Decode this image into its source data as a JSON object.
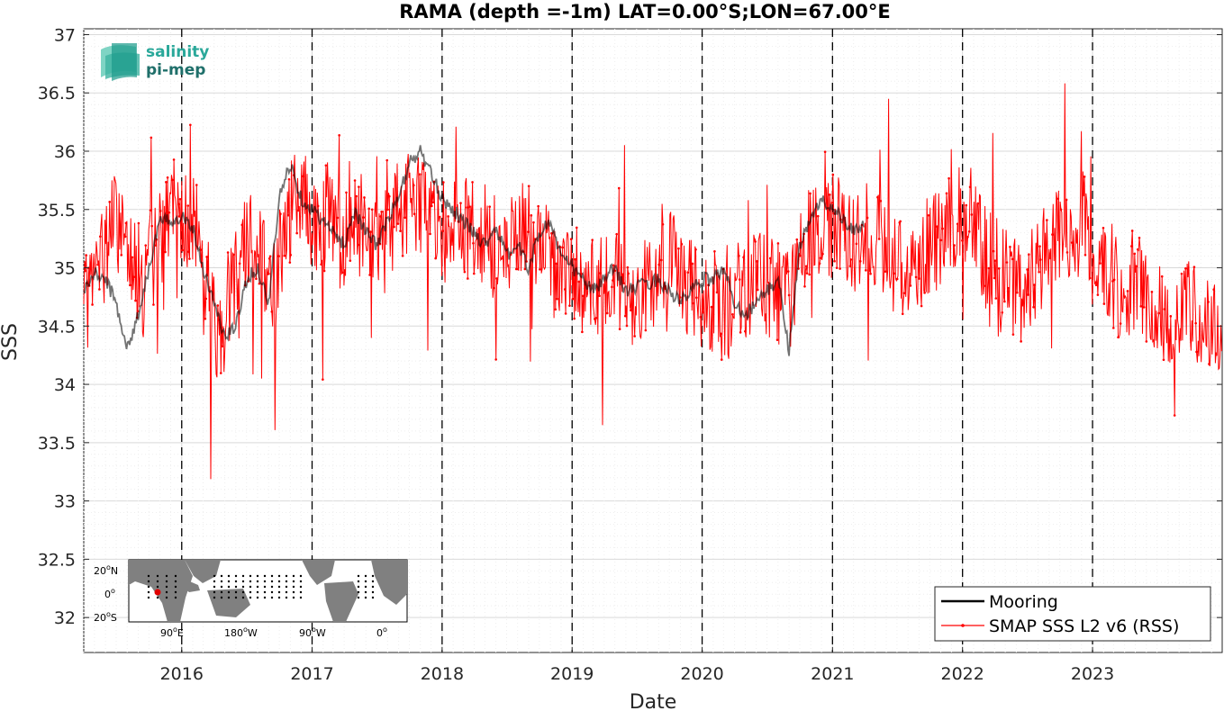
{
  "chart_data": {
    "type": "line",
    "title": "RAMA (depth =-1m) LAT=0.00°S;LON=67.00°E",
    "xlabel": "Date",
    "ylabel": "SSS",
    "xlim": [
      "2015-04-01",
      "2023-12-31"
    ],
    "ylim": [
      31.7,
      37.05
    ],
    "x_ticks": [
      "2016",
      "2017",
      "2018",
      "2019",
      "2020",
      "2021",
      "2022",
      "2023"
    ],
    "y_ticks": [
      "32",
      "32.5",
      "33",
      "33.5",
      "34",
      "34.5",
      "35",
      "35.5",
      "36",
      "36.5",
      "37"
    ],
    "year_marker_lines": [
      "2016-01-01",
      "2017-01-01",
      "2018-01-01",
      "2019-01-01",
      "2020-01-01",
      "2021-01-01",
      "2022-01-01",
      "2023-01-01"
    ],
    "grid": true,
    "legend_position": "bottom-right",
    "series": [
      {
        "name": "Mooring",
        "color": "#000000",
        "x": [
          "2015-04-01",
          "2015-05-01",
          "2015-06-01",
          "2015-07-01",
          "2015-08-01",
          "2015-09-01",
          "2015-10-01",
          "2015-11-01",
          "2015-12-01",
          "2016-01-01",
          "2016-02-01",
          "2016-03-01",
          "2016-04-01",
          "2016-05-01",
          "2016-06-01",
          "2016-07-01",
          "2016-08-01",
          "2016-09-01",
          "2016-10-01",
          "2016-11-01",
          "2016-12-01",
          "2017-01-01",
          "2017-02-01",
          "2017-03-01",
          "2017-04-01",
          "2017-05-01",
          "2017-06-01",
          "2017-07-01",
          "2017-08-01",
          "2017-09-01",
          "2017-10-01",
          "2017-11-01",
          "2017-12-01",
          "2018-01-01",
          "2018-02-01",
          "2018-03-01",
          "2018-04-01",
          "2018-05-01",
          "2018-06-01",
          "2018-07-01",
          "2018-08-01",
          "2018-09-01",
          "2018-10-01",
          "2018-11-01",
          "2018-12-01",
          "2019-01-01",
          "2019-02-01",
          "2019-03-01",
          "2019-04-01",
          "2019-05-01",
          "2019-06-01",
          "2019-09-01",
          "2019-10-01",
          "2019-11-01",
          "2019-12-01",
          "2020-01-01",
          "2020-02-01",
          "2020-03-01",
          "2020-04-01",
          "2020-05-01",
          "2020-06-01",
          "2020-07-01",
          "2020-08-01",
          "2020-09-01",
          "2020-10-01",
          "2020-11-01",
          "2020-12-01",
          "2021-01-01",
          "2021-02-01",
          "2021-03-01",
          "2021-04-01"
        ],
        "y": [
          34.8,
          34.95,
          34.9,
          34.7,
          34.3,
          34.6,
          35.0,
          35.4,
          35.4,
          35.45,
          35.35,
          35.0,
          34.7,
          34.4,
          34.5,
          34.9,
          35.0,
          34.7,
          35.6,
          35.9,
          35.6,
          35.5,
          35.4,
          35.3,
          35.2,
          35.5,
          35.3,
          35.2,
          35.4,
          35.6,
          35.9,
          36.0,
          35.8,
          35.6,
          35.5,
          35.4,
          35.3,
          35.2,
          35.35,
          35.1,
          35.2,
          35.0,
          35.3,
          35.4,
          35.1,
          35.0,
          34.9,
          34.8,
          34.9,
          35.0,
          34.8,
          34.9,
          34.8,
          34.7,
          34.8,
          34.9,
          34.9,
          35.0,
          34.7,
          34.6,
          34.7,
          34.8,
          34.9,
          34.3,
          35.2,
          35.4,
          35.6,
          35.5,
          35.4,
          35.3,
          35.4
        ]
      },
      {
        "name": "SMAP SSS L2 v6 (RSS)",
        "color": "#ff0000",
        "x": [
          "2015-04-01",
          "2015-05-15",
          "2015-06-20",
          "2015-08-01",
          "2015-09-15",
          "2015-10-25",
          "2015-12-01",
          "2016-01-15",
          "2016-02-20",
          "2016-03-25",
          "2016-04-20",
          "2016-05-25",
          "2016-07-01",
          "2016-08-05",
          "2016-09-01",
          "2016-09-20",
          "2016-10-25",
          "2016-12-01",
          "2017-01-15",
          "2017-02-20",
          "2017-03-25",
          "2017-05-01",
          "2017-06-10",
          "2017-07-20",
          "2017-09-01",
          "2017-10-15",
          "2017-11-20",
          "2018-01-01",
          "2018-02-15",
          "2018-04-01",
          "2018-05-15",
          "2018-07-01",
          "2018-08-15",
          "2018-10-01",
          "2018-11-15",
          "2019-01-01",
          "2019-02-15",
          "2019-04-01",
          "2019-05-15",
          "2019-06-20",
          "2019-09-01",
          "2019-10-15",
          "2019-12-01",
          "2020-01-15",
          "2020-03-01",
          "2020-04-15",
          "2020-06-01",
          "2020-07-15",
          "2020-09-01",
          "2020-10-15",
          "2020-12-01",
          "2021-01-15",
          "2021-03-01",
          "2021-04-15",
          "2021-06-01",
          "2021-07-15",
          "2021-09-01",
          "2021-10-15",
          "2021-12-01",
          "2022-01-15",
          "2022-03-01",
          "2022-04-15",
          "2022-06-01",
          "2022-08-01",
          "2022-09-15",
          "2022-11-01",
          "2022-12-15",
          "2023-02-01",
          "2023-03-15",
          "2023-05-01",
          "2023-06-15",
          "2023-08-01",
          "2023-09-15",
          "2023-11-01",
          "2023-12-31"
        ],
        "y": [
          34.6,
          35.0,
          35.4,
          35.3,
          34.8,
          35.2,
          35.5,
          35.4,
          35.3,
          34.6,
          34.4,
          35.0,
          35.3,
          35.2,
          34.8,
          34.9,
          35.5,
          35.6,
          35.3,
          35.5,
          35.2,
          35.4,
          35.3,
          35.2,
          35.5,
          35.6,
          35.5,
          35.3,
          35.4,
          35.3,
          35.2,
          35.1,
          35.3,
          35.2,
          35.0,
          35.0,
          34.9,
          34.8,
          34.9,
          34.6,
          35.0,
          35.1,
          34.8,
          34.7,
          34.6,
          34.8,
          34.9,
          34.8,
          34.7,
          35.2,
          35.3,
          35.4,
          35.2,
          35.3,
          35.1,
          35.0,
          35.1,
          35.2,
          35.4,
          35.5,
          35.1,
          35.0,
          34.8,
          35.0,
          35.3,
          35.3,
          35.4,
          35.0,
          34.8,
          34.9,
          34.7,
          34.6,
          34.7,
          34.5,
          34.5
        ]
      }
    ],
    "annotations": {
      "logo_line1": "salinity",
      "logo_line2": "pi-mep",
      "inset_map_ylabels": [
        "20ON",
        "0O",
        "20OS"
      ],
      "inset_map_xlabels": [
        "90OE",
        "180OW",
        "90OW",
        "0O"
      ]
    }
  }
}
